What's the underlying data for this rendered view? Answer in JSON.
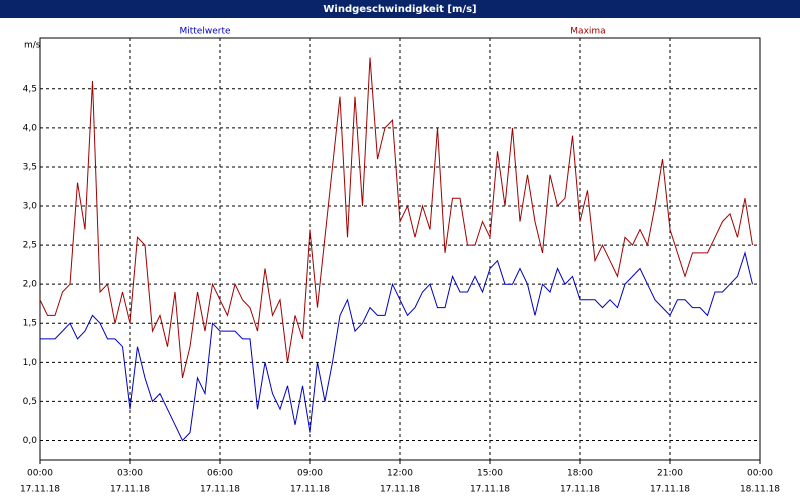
{
  "chart_data": {
    "type": "line",
    "title": "Windgeschwindigkeit [m/s]",
    "y_unit": "m/s",
    "x": [
      0,
      0.25,
      0.5,
      0.75,
      1,
      1.25,
      1.5,
      1.75,
      2,
      2.25,
      2.5,
      2.75,
      3,
      3.25,
      3.5,
      3.75,
      4,
      4.25,
      4.5,
      4.75,
      5,
      5.25,
      5.5,
      5.75,
      6,
      6.25,
      6.5,
      6.75,
      7,
      7.25,
      7.5,
      7.75,
      8,
      8.25,
      8.5,
      8.75,
      9,
      9.25,
      9.5,
      9.75,
      10,
      10.25,
      10.5,
      10.75,
      11,
      11.25,
      11.5,
      11.75,
      12,
      12.25,
      12.5,
      12.75,
      13,
      13.25,
      13.5,
      13.75,
      14,
      14.25,
      14.5,
      14.75,
      15,
      15.25,
      15.5,
      15.75,
      16,
      16.25,
      16.5,
      16.75,
      17,
      17.25,
      17.5,
      17.75,
      18,
      18.25,
      18.5,
      18.75,
      19,
      19.25,
      19.5,
      19.75,
      20,
      20.25,
      20.5,
      20.75,
      21,
      21.25,
      21.5,
      21.75,
      22,
      22.25,
      22.5,
      22.75,
      23,
      23.25,
      23.5,
      23.75
    ],
    "series": [
      {
        "name": "Mittelwerte",
        "color": "#0000c0",
        "values": [
          1.3,
          1.3,
          1.3,
          1.4,
          1.5,
          1.3,
          1.4,
          1.6,
          1.5,
          1.3,
          1.3,
          1.2,
          0.4,
          1.2,
          0.8,
          0.5,
          0.6,
          0.4,
          0.2,
          0.0,
          0.1,
          0.8,
          0.6,
          1.5,
          1.4,
          1.4,
          1.4,
          1.3,
          1.3,
          0.4,
          1.0,
          0.6,
          0.4,
          0.7,
          0.2,
          0.7,
          0.1,
          1.0,
          0.5,
          1.0,
          1.6,
          1.8,
          1.4,
          1.5,
          1.7,
          1.6,
          1.6,
          2.0,
          1.8,
          1.6,
          1.7,
          1.9,
          2.0,
          1.7,
          1.7,
          2.1,
          1.9,
          1.9,
          2.1,
          1.9,
          2.2,
          2.3,
          2.0,
          2.0,
          2.2,
          2.0,
          1.6,
          2.0,
          1.9,
          2.2,
          2.0,
          2.1,
          1.8,
          1.8,
          1.8,
          1.7,
          1.8,
          1.7,
          2.0,
          2.1,
          2.2,
          2.0,
          1.8,
          1.7,
          1.6,
          1.8,
          1.8,
          1.7,
          1.7,
          1.6,
          1.9,
          1.9,
          2.0,
          2.1,
          2.4,
          2.0
        ]
      },
      {
        "name": "Maxima",
        "color": "#a00000",
        "values": [
          1.8,
          1.6,
          1.6,
          1.9,
          2.0,
          3.3,
          2.7,
          4.6,
          1.9,
          2.0,
          1.5,
          1.9,
          1.5,
          2.6,
          2.5,
          1.4,
          1.6,
          1.2,
          1.9,
          0.8,
          1.2,
          1.9,
          1.4,
          2.0,
          1.8,
          1.6,
          2.0,
          1.8,
          1.7,
          1.4,
          2.2,
          1.6,
          1.8,
          1.0,
          1.6,
          1.3,
          2.7,
          1.7,
          2.6,
          3.5,
          4.4,
          2.6,
          4.4,
          3.0,
          4.9,
          3.6,
          4.0,
          4.1,
          2.8,
          3.0,
          2.6,
          3.0,
          2.7,
          4.0,
          2.4,
          3.1,
          3.1,
          2.5,
          2.5,
          2.8,
          2.6,
          3.7,
          3.0,
          4.0,
          2.8,
          3.4,
          2.8,
          2.4,
          3.4,
          3.0,
          3.1,
          3.9,
          2.8,
          3.2,
          2.3,
          2.5,
          2.3,
          2.1,
          2.6,
          2.5,
          2.7,
          2.5,
          3.0,
          3.6,
          2.7,
          2.4,
          2.1,
          2.4,
          2.4,
          2.4,
          2.6,
          2.8,
          2.9,
          2.6,
          3.1,
          2.5
        ]
      }
    ],
    "xlim": [
      0,
      24
    ],
    "xticks": [
      {
        "value": 0,
        "label": "00:00"
      },
      {
        "value": 3,
        "label": "03:00"
      },
      {
        "value": 6,
        "label": "06:00"
      },
      {
        "value": 9,
        "label": "09:00"
      },
      {
        "value": 12,
        "label": "12:00"
      },
      {
        "value": 15,
        "label": "15:00"
      },
      {
        "value": 18,
        "label": "18:00"
      },
      {
        "value": 21,
        "label": "21:00"
      },
      {
        "value": 24,
        "label": "00:00"
      }
    ],
    "xtick_dates": [
      "17.11.18",
      "17.11.18",
      "17.11.18",
      "17.11.18",
      "17.11.18",
      "17.11.18",
      "17.11.18",
      "17.11.18",
      "18.11.18"
    ],
    "ylim": [
      -0.25,
      5.15
    ],
    "yticks": [
      {
        "value": 0,
        "label": "0,0"
      },
      {
        "value": 0.5,
        "label": "0,5"
      },
      {
        "value": 1,
        "label": "1,0"
      },
      {
        "value": 1.5,
        "label": "1,5"
      },
      {
        "value": 2,
        "label": "2,0"
      },
      {
        "value": 2.5,
        "label": "2,5"
      },
      {
        "value": 3,
        "label": "3,0"
      },
      {
        "value": 3.5,
        "label": "3,5"
      },
      {
        "value": 4,
        "label": "4,0"
      },
      {
        "value": 4.5,
        "label": "4,5"
      }
    ],
    "grid": true
  }
}
